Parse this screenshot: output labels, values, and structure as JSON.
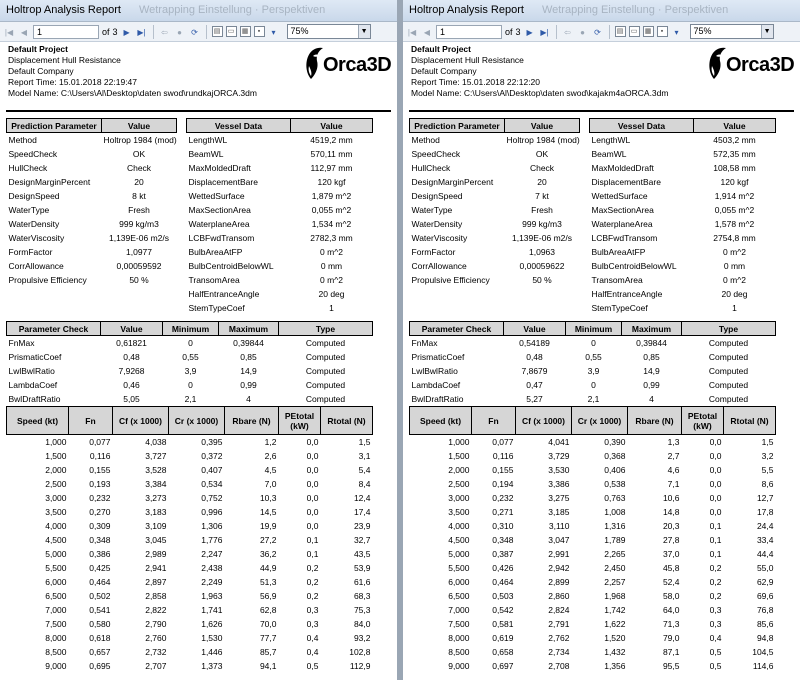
{
  "left": {
    "title": "Holtrop Analysis Report",
    "ghost_title": "Wetrapping Einstellung  ·  Perspektiven",
    "toolbar": {
      "page": "1",
      "of_label": "of",
      "total_pages": "3",
      "zoom": "75%"
    },
    "header": {
      "project": "Default Project",
      "analysis": "Displacement Hull Resistance",
      "company": "Default Company",
      "report_time": "Report Time: 15.01.2018 22:19:47",
      "model_name": "Model Name: C:\\Users\\Al\\Desktop\\daten swod\\rundkajORCA.3dm",
      "logo_text": "Orca3D"
    },
    "prediction": {
      "headers": [
        "Prediction Parameter",
        "Value"
      ],
      "rows": [
        [
          "Method",
          "Holtrop 1984 (mod)"
        ],
        [
          "SpeedCheck",
          "OK"
        ],
        [
          "HullCheck",
          "Check"
        ],
        [
          "DesignMarginPercent",
          "20"
        ],
        [
          "DesignSpeed",
          "8 kt"
        ],
        [
          "WaterType",
          "Fresh"
        ],
        [
          "WaterDensity",
          "999 kg/m3"
        ],
        [
          "WaterViscosity",
          "1,139E-06 m2/s"
        ],
        [
          "FormFactor",
          "1,0977"
        ],
        [
          "CorrAllowance",
          "0,00059592"
        ],
        [
          "Propulsive Efficiency",
          "50 %"
        ]
      ]
    },
    "vessel": {
      "headers": [
        "Vessel Data",
        "Value"
      ],
      "rows": [
        [
          "LengthWL",
          "4519,2 mm"
        ],
        [
          "BeamWL",
          "570,11 mm"
        ],
        [
          "MaxMoldedDraft",
          "112,97 mm"
        ],
        [
          "DisplacementBare",
          "120 kgf"
        ],
        [
          "WettedSurface",
          "1,879 m^2"
        ],
        [
          "MaxSectionArea",
          "0,055 m^2"
        ],
        [
          "WaterplaneArea",
          "1,534 m^2"
        ],
        [
          "LCBFwdTransom",
          "2782,3 mm"
        ],
        [
          "BulbAreaAtFP",
          "0 m^2"
        ],
        [
          "BulbCentroidBelowWL",
          "0 mm"
        ],
        [
          "TransomArea",
          "0 m^2"
        ],
        [
          "HalfEntranceAngle",
          "20 deg"
        ],
        [
          "StemTypeCoef",
          "1"
        ]
      ]
    },
    "params": {
      "headers": [
        "Parameter Check",
        "Value",
        "Minimum",
        "Maximum",
        "Type"
      ],
      "rows": [
        [
          "FnMax",
          "0,61821",
          "0",
          "0,39844",
          "Computed"
        ],
        [
          "PrismaticCoef",
          "0,48",
          "0,55",
          "0,85",
          "Computed"
        ],
        [
          "LwlBwlRatio",
          "7,9268",
          "3,9",
          "14,9",
          "Computed"
        ],
        [
          "LambdaCoef",
          "0,46",
          "0",
          "0,99",
          "Computed"
        ],
        [
          "BwlDraftRatio",
          "5,05",
          "2,1",
          "4",
          "Computed"
        ]
      ]
    },
    "speed": {
      "headers": [
        "Speed (kt)",
        "Fn",
        "Cf (x 1000)",
        "Cr (x 1000)",
        "Rbare (N)",
        "PEtotal (kW)",
        "Rtotal (N)"
      ],
      "rows": [
        [
          "1,000",
          "0,077",
          "4,038",
          "0,395",
          "1,2",
          "0,0",
          "1,5"
        ],
        [
          "1,500",
          "0,116",
          "3,727",
          "0,372",
          "2,6",
          "0,0",
          "3,1"
        ],
        [
          "2,000",
          "0,155",
          "3,528",
          "0,407",
          "4,5",
          "0,0",
          "5,4"
        ],
        [
          "2,500",
          "0,193",
          "3,384",
          "0,534",
          "7,0",
          "0,0",
          "8,4"
        ],
        [
          "3,000",
          "0,232",
          "3,273",
          "0,752",
          "10,3",
          "0,0",
          "12,4"
        ],
        [
          "3,500",
          "0,270",
          "3,183",
          "0,996",
          "14,5",
          "0,0",
          "17,4"
        ],
        [
          "4,000",
          "0,309",
          "3,109",
          "1,306",
          "19,9",
          "0,0",
          "23,9"
        ],
        [
          "4,500",
          "0,348",
          "3,045",
          "1,776",
          "27,2",
          "0,1",
          "32,7"
        ],
        [
          "5,000",
          "0,386",
          "2,989",
          "2,247",
          "36,2",
          "0,1",
          "43,5"
        ],
        [
          "5,500",
          "0,425",
          "2,941",
          "2,438",
          "44,9",
          "0,2",
          "53,9"
        ],
        [
          "6,000",
          "0,464",
          "2,897",
          "2,249",
          "51,3",
          "0,2",
          "61,6"
        ],
        [
          "6,500",
          "0,502",
          "2,858",
          "1,963",
          "56,9",
          "0,2",
          "68,3"
        ],
        [
          "7,000",
          "0,541",
          "2,822",
          "1,741",
          "62,8",
          "0,3",
          "75,3"
        ],
        [
          "7,500",
          "0,580",
          "2,790",
          "1,626",
          "70,0",
          "0,3",
          "84,0"
        ],
        [
          "8,000",
          "0,618",
          "2,760",
          "1,530",
          "77,7",
          "0,4",
          "93,2"
        ],
        [
          "8,500",
          "0,657",
          "2,732",
          "1,446",
          "85,7",
          "0,4",
          "102,8"
        ],
        [
          "9,000",
          "0,695",
          "2,707",
          "1,373",
          "94,1",
          "0,5",
          "112,9"
        ]
      ]
    }
  },
  "right": {
    "title": "Holtrop Analysis Report",
    "ghost_title": "Wetrapping Einstellung  ·  Perspektiven",
    "toolbar": {
      "page": "1",
      "of_label": "of",
      "total_pages": "3",
      "zoom": "75%"
    },
    "header": {
      "project": "Default Project",
      "analysis": "Displacement Hull Resistance",
      "company": "Default Company",
      "report_time": "Report Time: 15.01.2018 22:12:20",
      "model_name": "Model Name: C:\\Users\\Al\\Desktop\\daten swod\\kajakm4aORCA.3dm",
      "logo_text": "Orca3D"
    },
    "prediction": {
      "headers": [
        "Prediction Parameter",
        "Value"
      ],
      "rows": [
        [
          "Method",
          "Holtrop 1984 (mod)"
        ],
        [
          "SpeedCheck",
          "OK"
        ],
        [
          "HullCheck",
          "Check"
        ],
        [
          "DesignMarginPercent",
          "20"
        ],
        [
          "DesignSpeed",
          "7 kt"
        ],
        [
          "WaterType",
          "Fresh"
        ],
        [
          "WaterDensity",
          "999 kg/m3"
        ],
        [
          "WaterViscosity",
          "1,139E-06 m2/s"
        ],
        [
          "FormFactor",
          "1,0963"
        ],
        [
          "CorrAllowance",
          "0,00059622"
        ],
        [
          "Propulsive Efficiency",
          "50 %"
        ]
      ]
    },
    "vessel": {
      "headers": [
        "Vessel Data",
        "Value"
      ],
      "rows": [
        [
          "LengthWL",
          "4503,2 mm"
        ],
        [
          "BeamWL",
          "572,35 mm"
        ],
        [
          "MaxMoldedDraft",
          "108,58 mm"
        ],
        [
          "DisplacementBare",
          "120 kgf"
        ],
        [
          "WettedSurface",
          "1,914 m^2"
        ],
        [
          "MaxSectionArea",
          "0,055 m^2"
        ],
        [
          "WaterplaneArea",
          "1,578 m^2"
        ],
        [
          "LCBFwdTransom",
          "2754,8 mm"
        ],
        [
          "BulbAreaAtFP",
          "0 m^2"
        ],
        [
          "BulbCentroidBelowWL",
          "0 mm"
        ],
        [
          "TransomArea",
          "0 m^2"
        ],
        [
          "HalfEntranceAngle",
          "20 deg"
        ],
        [
          "StemTypeCoef",
          "1"
        ]
      ]
    },
    "params": {
      "headers": [
        "Parameter Check",
        "Value",
        "Minimum",
        "Maximum",
        "Type"
      ],
      "rows": [
        [
          "FnMax",
          "0,54189",
          "0",
          "0,39844",
          "Computed"
        ],
        [
          "PrismaticCoef",
          "0,48",
          "0,55",
          "0,85",
          "Computed"
        ],
        [
          "LwlBwlRatio",
          "7,8679",
          "3,9",
          "14,9",
          "Computed"
        ],
        [
          "LambdaCoef",
          "0,47",
          "0",
          "0,99",
          "Computed"
        ],
        [
          "BwlDraftRatio",
          "5,27",
          "2,1",
          "4",
          "Computed"
        ]
      ]
    },
    "speed": {
      "headers": [
        "Speed (kt)",
        "Fn",
        "Cf (x 1000)",
        "Cr (x 1000)",
        "Rbare (N)",
        "PEtotal (kW)",
        "Rtotal (N)"
      ],
      "rows": [
        [
          "1,000",
          "0,077",
          "4,041",
          "0,390",
          "1,3",
          "0,0",
          "1,5"
        ],
        [
          "1,500",
          "0,116",
          "3,729",
          "0,368",
          "2,7",
          "0,0",
          "3,2"
        ],
        [
          "2,000",
          "0,155",
          "3,530",
          "0,406",
          "4,6",
          "0,0",
          "5,5"
        ],
        [
          "2,500",
          "0,194",
          "3,386",
          "0,538",
          "7,1",
          "0,0",
          "8,6"
        ],
        [
          "3,000",
          "0,232",
          "3,275",
          "0,763",
          "10,6",
          "0,0",
          "12,7"
        ],
        [
          "3,500",
          "0,271",
          "3,185",
          "1,008",
          "14,8",
          "0,0",
          "17,8"
        ],
        [
          "4,000",
          "0,310",
          "3,110",
          "1,316",
          "20,3",
          "0,1",
          "24,4"
        ],
        [
          "4,500",
          "0,348",
          "3,047",
          "1,789",
          "27,8",
          "0,1",
          "33,4"
        ],
        [
          "5,000",
          "0,387",
          "2,991",
          "2,265",
          "37,0",
          "0,1",
          "44,4"
        ],
        [
          "5,500",
          "0,426",
          "2,942",
          "2,450",
          "45,8",
          "0,2",
          "55,0"
        ],
        [
          "6,000",
          "0,464",
          "2,899",
          "2,257",
          "52,4",
          "0,2",
          "62,9"
        ],
        [
          "6,500",
          "0,503",
          "2,860",
          "1,968",
          "58,0",
          "0,2",
          "69,6"
        ],
        [
          "7,000",
          "0,542",
          "2,824",
          "1,742",
          "64,0",
          "0,3",
          "76,8"
        ],
        [
          "7,500",
          "0,581",
          "2,791",
          "1,622",
          "71,3",
          "0,3",
          "85,6"
        ],
        [
          "8,000",
          "0,619",
          "2,762",
          "1,520",
          "79,0",
          "0,4",
          "94,8"
        ],
        [
          "8,500",
          "0,658",
          "2,734",
          "1,432",
          "87,1",
          "0,5",
          "104,5"
        ],
        [
          "9,000",
          "0,697",
          "2,708",
          "1,356",
          "95,5",
          "0,5",
          "114,6"
        ]
      ]
    }
  }
}
